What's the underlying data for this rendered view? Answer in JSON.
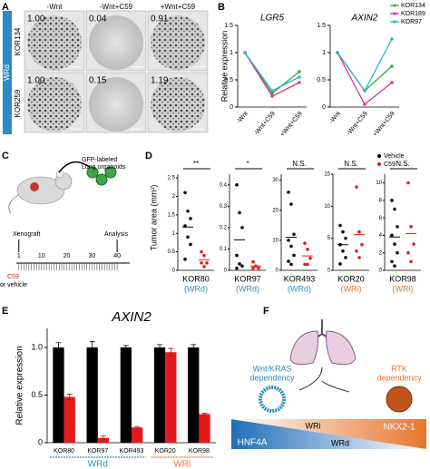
{
  "panel_labels": [
    "A",
    "B",
    "C",
    "D",
    "E",
    "F"
  ],
  "figure_A": {
    "columns": [
      "-Wnt",
      "-Wnt+C59",
      "+Wnt+C59"
    ],
    "group": "WRd",
    "rows": [
      {
        "name": "KOR134",
        "values": [
          "1.00",
          "0.04",
          "0.91"
        ]
      },
      {
        "name": "KOR259",
        "values": [
          "1.00",
          "0.15",
          "1.19"
        ]
      }
    ]
  },
  "figure_C": {
    "organoid_label": [
      "GFP-labeled",
      "Lung organoids"
    ],
    "xenograft": "Xenograft",
    "analysis": "Analysis",
    "xlim": [
      0,
      45
    ],
    "ticks": [
      1,
      10,
      20,
      30,
      40
    ],
    "treatment": [
      "C59",
      "or vehicle"
    ]
  },
  "figure_D": {
    "ylabel": "Tumor area (mm²)",
    "legend": [
      {
        "name": "Vehicle",
        "color": "#000000"
      },
      {
        "name": "C59",
        "color": "#e41a1c"
      }
    ]
  },
  "figure_F": {
    "left": [
      "Wnt/KRAS",
      "dependency"
    ],
    "right": [
      "RTK",
      "dependency"
    ],
    "bar_labels": [
      "HNF4A",
      "WRi",
      "WRd",
      "NKX2-1"
    ]
  },
  "chart_data": [
    {
      "type": "line",
      "title": "LGR5",
      "ylabel": "Relative expression",
      "categories": [
        "-Wnt",
        "-Wnt+C59",
        "+Wnt+C59"
      ],
      "ylim": [
        0,
        1.5
      ],
      "yticks": [
        0,
        0.5,
        1,
        1.5
      ],
      "series": [
        {
          "color": "#3aa843",
          "values": [
            1.0,
            0.25,
            0.65
          ]
        },
        {
          "color": "#e0348f",
          "values": [
            1.0,
            0.2,
            0.45
          ]
        },
        {
          "color": "#2fb5c9",
          "values": [
            1.0,
            0.3,
            0.55
          ]
        }
      ]
    },
    {
      "type": "line",
      "title": "AXIN2",
      "categories": [
        "-Wnt",
        "-Wnt+C59",
        "+Wnt+C59"
      ],
      "ylim": [
        0,
        1.5
      ],
      "yticks": [
        0,
        0.5,
        1,
        1.5
      ],
      "series": [
        {
          "name": "KOR134",
          "color": "#3aa843",
          "values": [
            1.0,
            0.3,
            0.75
          ]
        },
        {
          "name": "KOR189",
          "color": "#e0348f",
          "values": [
            1.0,
            0.05,
            0.45
          ]
        },
        {
          "name": "KOR97",
          "color": "#2fb5c9",
          "values": [
            1.0,
            0.3,
            1.25
          ]
        }
      ]
    },
    {
      "type": "strip",
      "title": "KOR80",
      "subtitle": "(WRd)",
      "subtitle_color": "#2b8cc4",
      "annotation": "**",
      "ylim": [
        0,
        2.6
      ],
      "yticks": [
        0,
        0.5,
        1,
        1.5,
        2,
        2.5
      ],
      "series": [
        {
          "color": "#000000",
          "values": [
            2.1,
            1.6,
            1.4,
            1.2,
            0.9,
            0.7,
            0.3
          ]
        },
        {
          "color": "#e41a1c",
          "values": [
            0.5,
            0.4,
            0.2,
            0.2,
            0.1
          ]
        }
      ]
    },
    {
      "type": "strip",
      "title": "KOR97",
      "subtitle": "(WRd)",
      "subtitle_color": "#2b8cc4",
      "annotation": "*",
      "ylim": [
        0,
        0.45
      ],
      "yticks": [
        0,
        0.1,
        0.2,
        0.3,
        0.4
      ],
      "series": [
        {
          "color": "#000000",
          "values": [
            0.4,
            0.27,
            0.2,
            0.07,
            0.03,
            0.02,
            0.01
          ]
        },
        {
          "color": "#e41a1c",
          "values": [
            0.04,
            0.02,
            0.01,
            0.01
          ]
        }
      ]
    },
    {
      "type": "strip",
      "title": "KOR493",
      "subtitle": "(WRd)",
      "subtitle_color": "#2b8cc4",
      "annotation": "N.S.",
      "ylim": [
        0,
        32
      ],
      "yticks": [
        0,
        10,
        20,
        30
      ],
      "series": [
        {
          "color": "#000000",
          "values": [
            26,
            22,
            12,
            10,
            8,
            5,
            3,
            2
          ]
        },
        {
          "color": "#e41a1c",
          "values": [
            9,
            7,
            4,
            2,
            2
          ]
        }
      ]
    },
    {
      "type": "strip",
      "title": "KOR20",
      "subtitle": "(WRi)",
      "subtitle_color": "#e8762d",
      "annotation": "N.S.",
      "ylim": [
        0,
        15
      ],
      "yticks": [
        0,
        5,
        10,
        15
      ],
      "series": [
        {
          "color": "#000000",
          "values": [
            7,
            6,
            5,
            4,
            3,
            2,
            1
          ]
        },
        {
          "color": "#e41a1c",
          "values": [
            13,
            6,
            4,
            3,
            2
          ]
        }
      ]
    },
    {
      "type": "strip",
      "title": "KOR98",
      "subtitle": "(WRi)",
      "subtitle_color": "#e8762d",
      "annotation": "N.S.",
      "ylim": [
        0,
        11
      ],
      "yticks": [
        0,
        2,
        4,
        6,
        8,
        10
      ],
      "series": [
        {
          "color": "#000000",
          "values": [
            8,
            7,
            5,
            4,
            3,
            2,
            1,
            0.5
          ]
        },
        {
          "color": "#e41a1c",
          "values": [
            10,
            5,
            3,
            2,
            1
          ]
        }
      ]
    },
    {
      "type": "bar",
      "title": "AXIN2",
      "ylabel": "Relative expression",
      "categories": [
        "KOR80",
        "KOR97",
        "KOR493",
        "KOR20",
        "KOR98"
      ],
      "ylim": [
        0,
        1.2
      ],
      "yticks": [
        0,
        0.5,
        {
          "value": 1,
          "label": "1.0"
        }
      ],
      "series": [
        {
          "color": "#000000",
          "values": [
            1.0,
            1.0,
            1.0,
            1.0,
            1.0
          ],
          "errors": [
            0.05,
            0.06,
            0.02,
            0.03,
            0.03
          ]
        },
        {
          "color": "#e41a1c",
          "values": [
            0.48,
            0.05,
            0.16,
            0.95,
            0.3
          ],
          "errors": [
            0.03,
            0.02,
            0.01,
            0.04,
            0.01
          ]
        }
      ],
      "groups": [
        {
          "label": "WRd",
          "color": "#2b8cc4",
          "count": 3
        },
        {
          "label": "WRi",
          "color": "#e8762d",
          "count": 2
        }
      ]
    }
  ]
}
